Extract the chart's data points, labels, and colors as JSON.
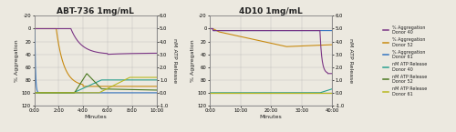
{
  "left_title": "ABT-736 1mg/mL",
  "right_title": "4D10 1mg/mL",
  "ylabel_left": "% Aggregation",
  "ylabel_right": "nM ATP Release",
  "xlabel": "Minutes",
  "left_xtick_labels": [
    "0:00",
    "2:00",
    "4:00",
    "6:00",
    "8:00",
    "10:00"
  ],
  "right_xtick_labels": [
    "0:00",
    "10:00",
    "20:00",
    "30:00",
    "40:00"
  ],
  "bg_color": "#ece9e0",
  "colors": {
    "agg_donor40": "#7B3585",
    "agg_donor52": "#C88A10",
    "agg_donor61": "#3575C0",
    "atp_donor40": "#2AA090",
    "atp_donor52": "#4A7820",
    "atp_donor61": "#B8B820"
  },
  "legend_labels": [
    "% Aggregation\nDonor 40",
    "% Aggregation\nDonor 52",
    "% Aggregation\nDonor 61",
    "nM ATP Release\nDonor 40",
    "nM ATP Release\nDonor 52",
    "nM ATP Release\nDonor 61"
  ]
}
